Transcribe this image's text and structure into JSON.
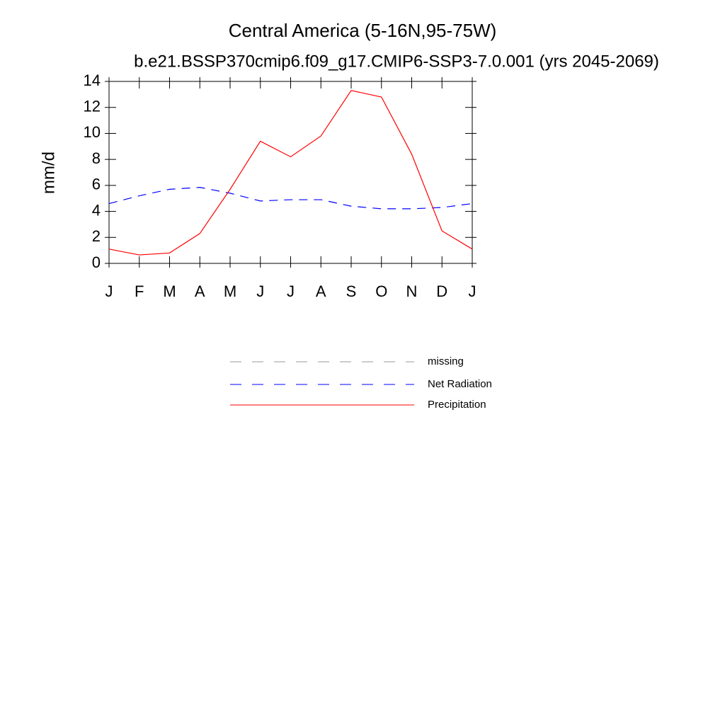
{
  "chart_data": {
    "type": "line",
    "title": "Central America (5-16N,95-75W)",
    "subtitle": "b.e21.BSSP370cmip6.f09_g17.CMIP6-SSP3-7.0.001 (yrs 2045-2069)",
    "y_label": "mm/d",
    "categories": [
      "J",
      "F",
      "M",
      "A",
      "M",
      "J",
      "J",
      "A",
      "S",
      "O",
      "N",
      "D",
      "J"
    ],
    "series": [
      {
        "name": "missing",
        "color": "#999999",
        "dash": true,
        "values": [
          null,
          null,
          null,
          null,
          null,
          null,
          null,
          null,
          null,
          null,
          null,
          null,
          null
        ]
      },
      {
        "name": "Net Radiation",
        "color": "#0000ff",
        "dash": true,
        "values": [
          4.6,
          5.2,
          5.7,
          5.85,
          5.4,
          4.8,
          4.9,
          4.9,
          4.4,
          4.2,
          4.2,
          4.3,
          4.6
        ]
      },
      {
        "name": "Precipitation",
        "color": "#ff0000",
        "dash": false,
        "values": [
          1.1,
          0.65,
          0.8,
          2.3,
          5.7,
          9.4,
          8.2,
          9.8,
          13.3,
          12.8,
          8.4,
          2.5,
          1.1
        ]
      }
    ],
    "ylim": [
      0,
      14
    ],
    "yticks": [
      0,
      2,
      4,
      6,
      8,
      10,
      12,
      14
    ]
  }
}
